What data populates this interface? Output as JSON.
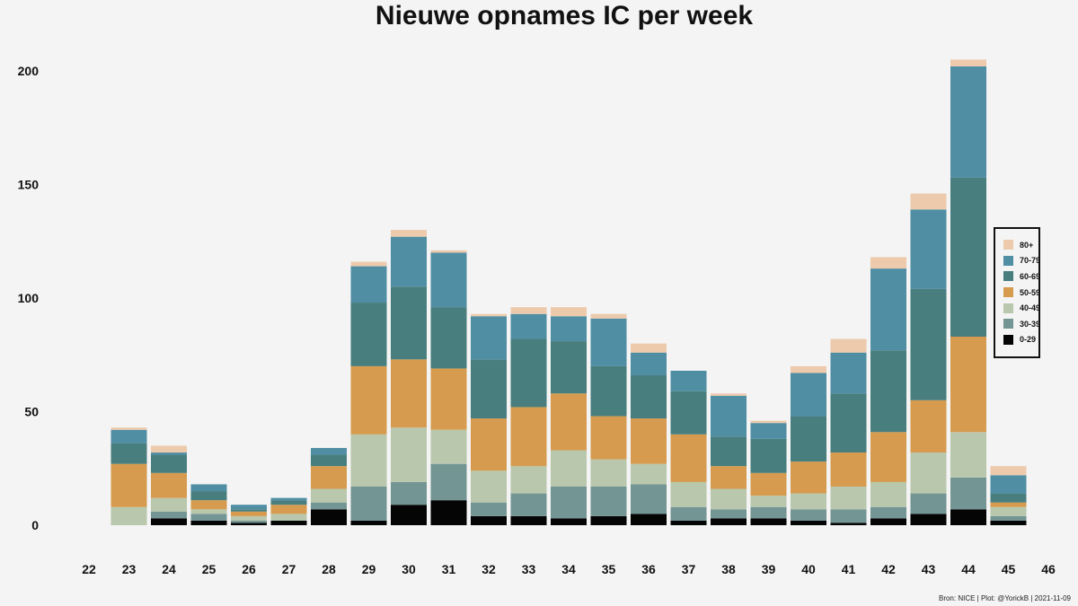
{
  "chart_data": {
    "type": "bar",
    "stacked": true,
    "title": "Nieuwe opnames IC per week",
    "xlabel": "",
    "ylabel": "",
    "x_ticks": [
      "22",
      "23",
      "24",
      "25",
      "26",
      "27",
      "28",
      "29",
      "30",
      "31",
      "32",
      "33",
      "34",
      "35",
      "36",
      "37",
      "38",
      "39",
      "40",
      "41",
      "42",
      "43",
      "44",
      "45",
      "46"
    ],
    "y_ticks": [
      0,
      50,
      100,
      150,
      200
    ],
    "ylim": [
      0,
      210
    ],
    "categories": [
      "23",
      "24",
      "25",
      "26",
      "27",
      "28",
      "29",
      "30",
      "31",
      "32",
      "33",
      "34",
      "35",
      "36",
      "37",
      "38",
      "39",
      "40",
      "41",
      "42",
      "43",
      "44",
      "45"
    ],
    "series": [
      {
        "name": "0-29",
        "color": "#050505",
        "values": [
          0,
          3,
          2,
          1,
          2,
          7,
          2,
          9,
          11,
          4,
          4,
          3,
          4,
          5,
          2,
          3,
          3,
          2,
          1,
          3,
          5,
          7,
          2
        ]
      },
      {
        "name": "30-39",
        "color": "#739594",
        "values": [
          0,
          3,
          3,
          1,
          0,
          3,
          15,
          10,
          16,
          6,
          10,
          14,
          13,
          13,
          6,
          4,
          5,
          5,
          6,
          5,
          9,
          14,
          2
        ]
      },
      {
        "name": "40-49",
        "color": "#b9c7ad",
        "values": [
          8,
          6,
          2,
          2,
          3,
          6,
          23,
          24,
          15,
          14,
          12,
          16,
          12,
          9,
          11,
          9,
          5,
          7,
          10,
          11,
          18,
          20,
          4
        ]
      },
      {
        "name": "50-59",
        "color": "#d69b4e",
        "values": [
          19,
          11,
          4,
          2,
          4,
          10,
          30,
          30,
          27,
          23,
          26,
          25,
          19,
          20,
          21,
          10,
          10,
          14,
          15,
          22,
          23,
          42,
          2
        ]
      },
      {
        "name": "60-69",
        "color": "#487e7e",
        "values": [
          9,
          8,
          4,
          1,
          2,
          5,
          28,
          32,
          27,
          26,
          30,
          23,
          22,
          19,
          19,
          13,
          15,
          20,
          26,
          36,
          49,
          70,
          4
        ]
      },
      {
        "name": "70-79",
        "color": "#508ea4",
        "values": [
          6,
          1,
          3,
          2,
          1,
          3,
          16,
          22,
          24,
          19,
          11,
          11,
          21,
          10,
          9,
          18,
          7,
          19,
          18,
          36,
          35,
          49,
          8
        ]
      },
      {
        "name": "80+",
        "color": "#edcaac",
        "values": [
          1,
          3,
          0,
          0,
          0,
          0,
          2,
          3,
          1,
          1,
          3,
          4,
          2,
          4,
          0,
          1,
          1,
          3,
          6,
          5,
          7,
          3,
          4
        ]
      }
    ],
    "legend_position": "right",
    "grid": false
  },
  "source_note": "Bron: NICE | Plot: @YorickB |  2021-11-09"
}
